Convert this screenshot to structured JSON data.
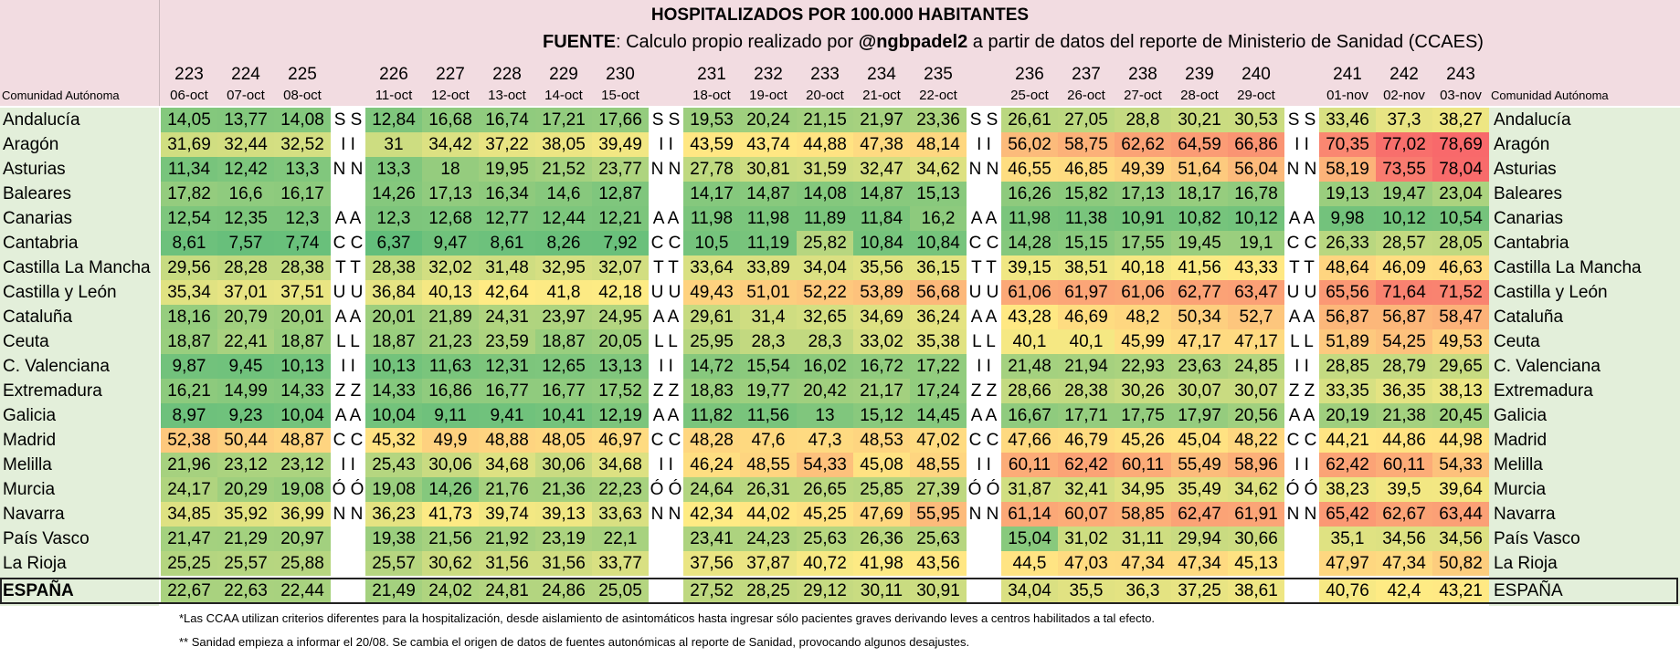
{
  "title": "HOSPITALIZADOS POR 100.000 HABITANTES",
  "source": {
    "prefix": "FUENTE",
    "text_a": ": Calculo propio realizado por ",
    "handle": "@ngbpadel2",
    "text_b": " a partir de datos del reporte de Ministerio de Sanidad (CCAES)"
  },
  "region_header": "Comunidad Autónoma",
  "gap_letters": [
    [
      "S",
      "S"
    ],
    [
      "I",
      "I"
    ],
    [
      "N",
      "N"
    ],
    [
      "",
      ""
    ],
    [
      "A",
      "A"
    ],
    [
      "C",
      "C"
    ],
    [
      "T",
      "T"
    ],
    [
      "U",
      "U"
    ],
    [
      "A",
      "A"
    ],
    [
      "L",
      "L"
    ],
    [
      "I",
      "I"
    ],
    [
      "Z",
      "Z"
    ],
    [
      "A",
      "A"
    ],
    [
      "C",
      "C"
    ],
    [
      "I",
      "I"
    ],
    [
      "Ó",
      "Ó"
    ],
    [
      "N",
      "N"
    ],
    [
      "",
      ""
    ]
  ],
  "footnotes": [
    "*Las CCAA utilizan criterios diferentes para la hospitalización, desde aislamiento de asintomáticos hasta ingresar sólo pacientes graves derivando leves a centros habilitados a tal efecto.",
    "** Sanidad empieza a informar el 20/08. Se cambia el origen de datos de fuentes autonómicas al reporte de Sanidad, provocando algunos desajustes."
  ],
  "colors": {
    "header_bg": "#f2dce1",
    "label_bg": "#e3efda",
    "scale_low": "#63be7b",
    "scale_mid": "#ffeb84",
    "scale_high": "#f8696b"
  },
  "chart_data": {
    "type": "heatmap",
    "title": "HOSPITALIZADOS POR 100.000 HABITANTES",
    "report_numbers": [
      "223",
      "224",
      "225",
      "226",
      "227",
      "228",
      "229",
      "230",
      "231",
      "232",
      "233",
      "234",
      "235",
      "236",
      "237",
      "238",
      "239",
      "240",
      "241",
      "242",
      "243"
    ],
    "dates": [
      "06-oct",
      "07-oct",
      "08-oct",
      "11-oct",
      "12-oct",
      "13-oct",
      "14-oct",
      "15-oct",
      "18-oct",
      "19-oct",
      "20-oct",
      "21-oct",
      "22-oct",
      "25-oct",
      "26-oct",
      "27-oct",
      "28-oct",
      "29-oct",
      "01-nov",
      "02-nov",
      "03-nov"
    ],
    "rows": [
      {
        "region": "Andalucía",
        "values": [
          "14,05",
          "13,77",
          "14,08",
          "12,84",
          "16,68",
          "16,74",
          "17,21",
          "17,66",
          "19,53",
          "20,24",
          "21,15",
          "21,97",
          "23,36",
          "26,61",
          "27,05",
          "28,8",
          "30,21",
          "30,53",
          "33,46",
          "37,3",
          "38,27"
        ]
      },
      {
        "region": "Aragón",
        "values": [
          "31,69",
          "32,44",
          "32,52",
          "31",
          "34,42",
          "37,22",
          "38,05",
          "39,49",
          "43,59",
          "43,74",
          "44,88",
          "47,38",
          "48,14",
          "56,02",
          "58,75",
          "62,62",
          "64,59",
          "66,86",
          "70,35",
          "77,02",
          "78,69"
        ]
      },
      {
        "region": "Asturias",
        "values": [
          "11,34",
          "12,42",
          "13,3",
          "13,3",
          "18",
          "19,95",
          "21,52",
          "23,77",
          "27,78",
          "30,81",
          "31,59",
          "32,47",
          "34,62",
          "46,55",
          "46,85",
          "49,39",
          "51,64",
          "56,04",
          "58,19",
          "73,55",
          "78,04"
        ]
      },
      {
        "region": "Baleares",
        "values": [
          "17,82",
          "16,6",
          "16,17",
          "14,26",
          "17,13",
          "16,34",
          "14,6",
          "12,87",
          "14,17",
          "14,87",
          "14,08",
          "14,87",
          "15,13",
          "16,26",
          "15,82",
          "17,13",
          "18,17",
          "16,78",
          "19,13",
          "19,47",
          "23,04"
        ]
      },
      {
        "region": "Canarias",
        "values": [
          "12,54",
          "12,35",
          "12,3",
          "12,3",
          "12,68",
          "12,77",
          "12,44",
          "12,21",
          "11,98",
          "11,98",
          "11,89",
          "11,84",
          "16,2",
          "11,98",
          "11,38",
          "10,91",
          "10,82",
          "10,12",
          "9,98",
          "10,12",
          "10,54"
        ]
      },
      {
        "region": "Cantabria",
        "values": [
          "8,61",
          "7,57",
          "7,74",
          "6,37",
          "9,47",
          "8,61",
          "8,26",
          "7,92",
          "10,5",
          "11,19",
          "25,82",
          "10,84",
          "10,84",
          "14,28",
          "15,15",
          "17,55",
          "19,45",
          "19,1",
          "26,33",
          "28,57",
          "28,05"
        ]
      },
      {
        "region": "Castilla La Mancha",
        "values": [
          "29,56",
          "28,28",
          "28,38",
          "28,38",
          "32,02",
          "31,48",
          "32,95",
          "32,07",
          "33,64",
          "33,89",
          "34,04",
          "35,56",
          "36,15",
          "39,15",
          "38,51",
          "40,18",
          "41,56",
          "43,33",
          "48,64",
          "46,09",
          "46,63"
        ]
      },
      {
        "region": "Castilla y León",
        "values": [
          "35,34",
          "37,01",
          "37,51",
          "36,84",
          "40,13",
          "42,64",
          "41,8",
          "42,18",
          "49,43",
          "51,01",
          "52,22",
          "53,89",
          "56,68",
          "61,06",
          "61,97",
          "61,06",
          "62,77",
          "63,47",
          "65,56",
          "71,64",
          "71,52"
        ]
      },
      {
        "region": "Cataluña",
        "values": [
          "18,16",
          "20,79",
          "20,01",
          "20,01",
          "21,89",
          "24,31",
          "23,97",
          "24,95",
          "29,61",
          "31,4",
          "32,65",
          "34,69",
          "36,24",
          "43,28",
          "46,69",
          "48,2",
          "50,34",
          "52,7",
          "56,87",
          "56,87",
          "58,47"
        ]
      },
      {
        "region": "Ceuta",
        "values": [
          "18,87",
          "22,41",
          "18,87",
          "18,87",
          "21,23",
          "23,59",
          "18,87",
          "20,05",
          "25,95",
          "28,3",
          "28,3",
          "33,02",
          "35,38",
          "40,1",
          "40,1",
          "45,99",
          "47,17",
          "47,17",
          "51,89",
          "54,25",
          "49,53"
        ]
      },
      {
        "region": "C. Valenciana",
        "values": [
          "9,87",
          "9,45",
          "10,13",
          "10,13",
          "11,63",
          "12,31",
          "12,65",
          "13,13",
          "14,72",
          "15,54",
          "16,02",
          "16,72",
          "17,22",
          "21,48",
          "21,94",
          "22,93",
          "23,63",
          "24,85",
          "28,85",
          "28,79",
          "29,65"
        ]
      },
      {
        "region": "Extremadura",
        "values": [
          "16,21",
          "14,99",
          "14,33",
          "14,33",
          "16,86",
          "16,77",
          "16,77",
          "17,52",
          "18,83",
          "19,77",
          "20,42",
          "21,17",
          "17,24",
          "28,66",
          "28,38",
          "30,26",
          "30,07",
          "30,07",
          "33,35",
          "36,35",
          "38,13"
        ]
      },
      {
        "region": "Galicia",
        "values": [
          "8,97",
          "9,23",
          "10,04",
          "10,04",
          "9,11",
          "9,41",
          "10,41",
          "12,19",
          "11,82",
          "11,56",
          "13",
          "15,12",
          "14,45",
          "16,67",
          "17,71",
          "17,75",
          "17,97",
          "20,56",
          "20,19",
          "21,38",
          "20,45"
        ]
      },
      {
        "region": "Madrid",
        "values": [
          "52,38",
          "50,44",
          "48,87",
          "45,32",
          "49,9",
          "48,88",
          "48,05",
          "46,97",
          "48,28",
          "47,6",
          "47,3",
          "48,53",
          "47,02",
          "47,66",
          "46,79",
          "45,26",
          "45,04",
          "48,22",
          "44,21",
          "44,86",
          "44,98"
        ]
      },
      {
        "region": "Melilla",
        "values": [
          "21,96",
          "23,12",
          "23,12",
          "25,43",
          "30,06",
          "34,68",
          "30,06",
          "34,68",
          "46,24",
          "48,55",
          "54,33",
          "45,08",
          "48,55",
          "60,11",
          "62,42",
          "60,11",
          "55,49",
          "58,96",
          "62,42",
          "60,11",
          "54,33"
        ]
      },
      {
        "region": "Murcia",
        "values": [
          "24,17",
          "20,29",
          "19,08",
          "19,08",
          "14,26",
          "21,76",
          "21,36",
          "22,23",
          "24,64",
          "26,31",
          "26,65",
          "25,85",
          "27,39",
          "31,87",
          "32,41",
          "34,95",
          "35,49",
          "34,62",
          "38,23",
          "39,5",
          "39,64"
        ]
      },
      {
        "region": "Navarra",
        "values": [
          "34,85",
          "35,92",
          "36,99",
          "36,23",
          "41,73",
          "39,74",
          "39,13",
          "33,63",
          "42,34",
          "44,02",
          "45,25",
          "47,69",
          "55,95",
          "61,14",
          "60,07",
          "58,85",
          "62,47",
          "61,91",
          "65,42",
          "62,67",
          "63,44"
        ]
      },
      {
        "region": "País Vasco",
        "values": [
          "21,47",
          "21,29",
          "20,97",
          "19,38",
          "21,56",
          "21,92",
          "23,19",
          "22,1",
          "23,41",
          "24,23",
          "25,63",
          "26,36",
          "25,63",
          "15,04",
          "31,02",
          "31,11",
          "29,94",
          "30,66",
          "35,1",
          "34,56",
          "34,56"
        ]
      },
      {
        "region": "La Rioja",
        "values": [
          "25,25",
          "25,57",
          "25,88",
          "25,57",
          "30,62",
          "31,56",
          "31,56",
          "33,77",
          "37,56",
          "37,87",
          "40,72",
          "41,98",
          "43,56",
          "44,5",
          "47,03",
          "47,34",
          "47,34",
          "45,13",
          "47,97",
          "47,34",
          "50,82"
        ]
      },
      {
        "region": "ESPAÑA",
        "values": [
          "22,67",
          "22,63",
          "22,44",
          "21,49",
          "24,02",
          "24,81",
          "24,86",
          "25,05",
          "27,52",
          "28,25",
          "29,12",
          "30,11",
          "30,91",
          "34,04",
          "35,5",
          "36,3",
          "37,25",
          "38,61",
          "40,76",
          "42,4",
          "43,21"
        ]
      }
    ],
    "color_scale": {
      "min": 6.37,
      "max": 78.69
    }
  }
}
